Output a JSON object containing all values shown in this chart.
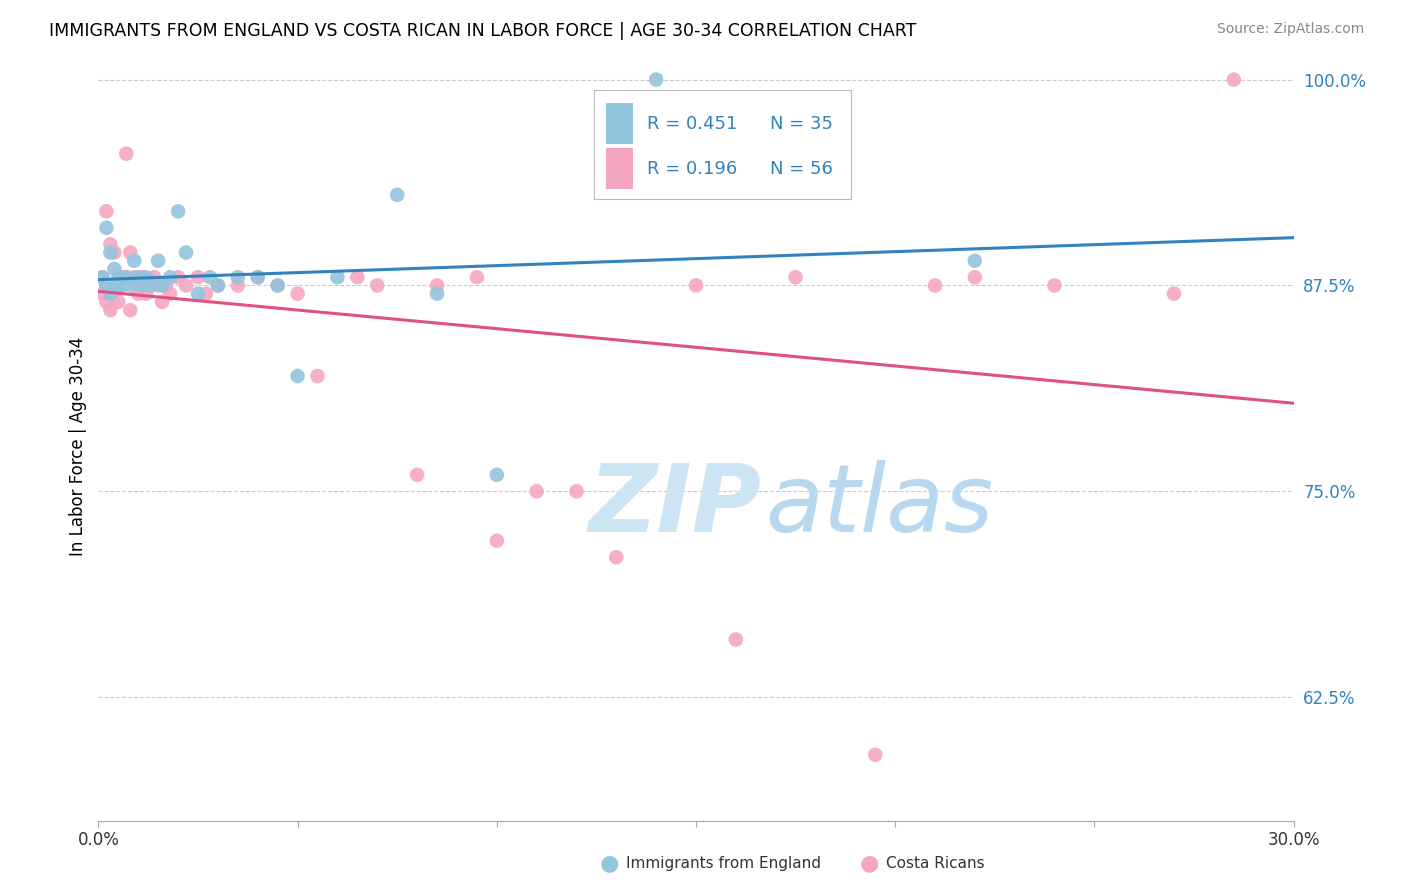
{
  "title": "IMMIGRANTS FROM ENGLAND VS COSTA RICAN IN LABOR FORCE | AGE 30-34 CORRELATION CHART",
  "source": "Source: ZipAtlas.com",
  "ylabel": "In Labor Force | Age 30-34",
  "xlim": [
    0.0,
    0.3
  ],
  "ylim": [
    0.55,
    1.005
  ],
  "yticks": [
    0.625,
    0.75,
    0.875,
    1.0
  ],
  "ytick_labels": [
    "62.5%",
    "75.0%",
    "87.5%",
    "100.0%"
  ],
  "xticks": [
    0.0,
    0.05,
    0.1,
    0.15,
    0.2,
    0.25,
    0.3
  ],
  "xtick_labels": [
    "0.0%",
    "",
    "",
    "",
    "",
    "",
    "30.0%"
  ],
  "legend_r1": "R = 0.451",
  "legend_n1": "N = 35",
  "legend_r2": "R = 0.196",
  "legend_n2": "N = 56",
  "color_england": "#92c5de",
  "color_costarica": "#f4a6c0",
  "trendline_england": "#3182bd",
  "trendline_costarica": "#e05080",
  "england_x": [
    0.001,
    0.002,
    0.002,
    0.003,
    0.003,
    0.004,
    0.004,
    0.005,
    0.005,
    0.006,
    0.007,
    0.008,
    0.009,
    0.01,
    0.011,
    0.012,
    0.013,
    0.015,
    0.016,
    0.018,
    0.02,
    0.022,
    0.025,
    0.028,
    0.03,
    0.035,
    0.04,
    0.045,
    0.05,
    0.06,
    0.075,
    0.085,
    0.1,
    0.14,
    0.22
  ],
  "england_y": [
    0.88,
    0.875,
    0.91,
    0.87,
    0.895,
    0.875,
    0.885,
    0.88,
    0.875,
    0.875,
    0.88,
    0.875,
    0.89,
    0.88,
    0.875,
    0.88,
    0.875,
    0.89,
    0.875,
    0.88,
    0.92,
    0.895,
    0.87,
    0.88,
    0.875,
    0.88,
    0.88,
    0.875,
    0.82,
    0.88,
    0.93,
    0.87,
    0.76,
    1.0,
    0.89
  ],
  "costarica_x": [
    0.001,
    0.001,
    0.002,
    0.002,
    0.002,
    0.003,
    0.003,
    0.003,
    0.004,
    0.004,
    0.005,
    0.005,
    0.006,
    0.007,
    0.007,
    0.008,
    0.008,
    0.009,
    0.01,
    0.01,
    0.011,
    0.012,
    0.013,
    0.014,
    0.015,
    0.016,
    0.017,
    0.018,
    0.02,
    0.022,
    0.025,
    0.027,
    0.03,
    0.035,
    0.04,
    0.045,
    0.05,
    0.055,
    0.065,
    0.07,
    0.08,
    0.085,
    0.095,
    0.1,
    0.11,
    0.12,
    0.13,
    0.15,
    0.16,
    0.175,
    0.195,
    0.21,
    0.22,
    0.24,
    0.27,
    0.285
  ],
  "costarica_y": [
    0.88,
    0.87,
    0.92,
    0.875,
    0.865,
    0.9,
    0.875,
    0.86,
    0.895,
    0.875,
    0.875,
    0.865,
    0.88,
    0.955,
    0.88,
    0.895,
    0.86,
    0.88,
    0.87,
    0.875,
    0.88,
    0.87,
    0.875,
    0.88,
    0.875,
    0.865,
    0.875,
    0.87,
    0.88,
    0.875,
    0.88,
    0.87,
    0.875,
    0.875,
    0.88,
    0.875,
    0.87,
    0.82,
    0.88,
    0.875,
    0.76,
    0.875,
    0.88,
    0.72,
    0.75,
    0.75,
    0.71,
    0.875,
    0.66,
    0.88,
    0.59,
    0.875,
    0.88,
    0.875,
    0.87,
    1.0
  ],
  "watermark_zip": "ZIP",
  "watermark_atlas": "atlas",
  "background_color": "#ffffff",
  "grid_color": "#cccccc"
}
